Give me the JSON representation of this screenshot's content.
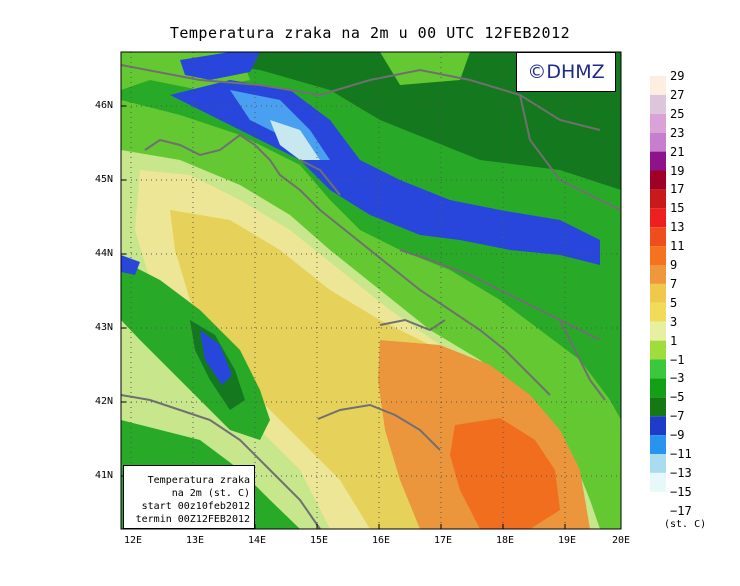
{
  "title": "Temperatura zraka na 2m u 00 UTC 12FEB2012",
  "logo": "©DHMZ",
  "info_box": {
    "line1": "Temperatura zraka",
    "line2": "na 2m (st. C)",
    "line3": "start 00z10feb2012",
    "line4": "termin 00Z12FEB2012"
  },
  "lat_labels": [
    "46N",
    "45N",
    "44N",
    "43N",
    "42N",
    "41N"
  ],
  "lon_labels": [
    "12E",
    "13E",
    "14E",
    "15E",
    "16E",
    "17E",
    "18E",
    "19E",
    "20E"
  ],
  "colorbar": {
    "unit": "(st. C)",
    "labels": [
      "29",
      "27",
      "25",
      "23",
      "21",
      "19",
      "17",
      "15",
      "13",
      "11",
      "9",
      "7",
      "5",
      "3",
      "1",
      "−1",
      "−3",
      "−5",
      "−7",
      "−9",
      "−11",
      "−13",
      "−15",
      "−17"
    ],
    "colors": [
      "#fdeee0",
      "#ddc6dc",
      "#d9a3d8",
      "#c77fcd",
      "#8c138c",
      "#a00026",
      "#c81a1a",
      "#f01f1f",
      "#f04d1f",
      "#f5731f",
      "#f0963c",
      "#f0c84b",
      "#f0dc5a",
      "#e6f0a0",
      "#a0dc3c",
      "#3cc83c",
      "#14a014",
      "#147814",
      "#1e3cc8",
      "#2894f0",
      "#a8dcef",
      "#e6f8fa"
    ]
  },
  "map_colors": {
    "light_yellow": "#ede696",
    "yellow": "#e6d25a",
    "orange": "#eb963c",
    "dark_orange": "#f06e1e",
    "pale_green": "#c8e68c",
    "green": "#64c832",
    "mid_green": "#28aa28",
    "dark_green": "#14781e",
    "blue": "#2846dc",
    "light_blue": "#4aa0f0",
    "pale_blue": "#c8e8f0",
    "coast": "#707070"
  }
}
